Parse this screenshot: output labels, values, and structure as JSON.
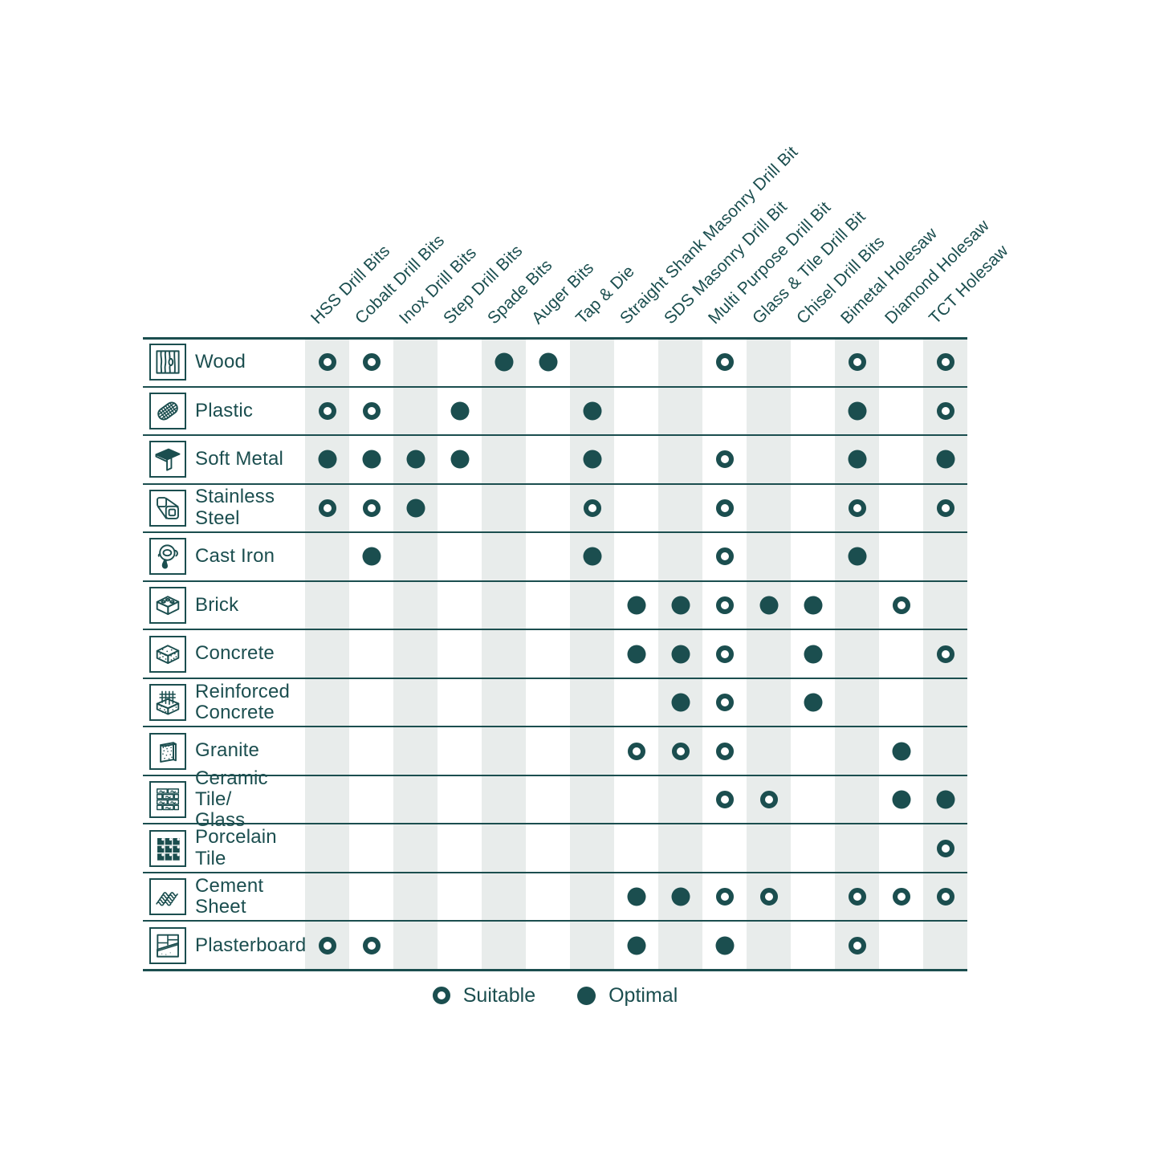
{
  "colors": {
    "ink": "#1b4e4f",
    "stripe": "#e8eceb",
    "background": "#ffffff"
  },
  "legend": {
    "suitable_label": "Suitable",
    "optimal_label": "Optimal"
  },
  "chart_data": {
    "type": "table",
    "description": "Drill bit / accessory suitability matrix by material",
    "legend_position": "bottom",
    "cell_encoding": {
      "0": "none",
      "1": "suitable (open ring)",
      "2": "optimal (filled dot)"
    },
    "columns": [
      "HSS Drill Bits",
      "Cobalt Drill Bits",
      "Inox Drill Bits",
      "Step Drill Bits",
      "Spade Bits",
      "Auger Bits",
      "Tap & Die",
      "Straight Shank Masonry Drill Bit",
      "SDS Masonry Drill Bit",
      "Multi Purpose Drill Bit",
      "Glass & Tile Drill Bit",
      "Chisel Drill Bits",
      "Bimetal Holesaw",
      "Diamond Holesaw",
      "TCT Holesaw"
    ],
    "rows": [
      {
        "material": "Wood",
        "icon": "wood-icon",
        "cells": [
          1,
          1,
          0,
          0,
          2,
          2,
          0,
          0,
          0,
          1,
          0,
          0,
          1,
          0,
          1
        ]
      },
      {
        "material": "Plastic",
        "icon": "plastic-icon",
        "cells": [
          1,
          1,
          0,
          2,
          0,
          0,
          2,
          0,
          0,
          0,
          0,
          0,
          2,
          0,
          1
        ]
      },
      {
        "material": "Soft Metal",
        "icon": "soft-metal-icon",
        "cells": [
          2,
          2,
          2,
          2,
          0,
          0,
          2,
          0,
          0,
          1,
          0,
          0,
          2,
          0,
          2
        ]
      },
      {
        "material": "Stainless Steel",
        "icon": "stainless-steel-icon",
        "cells": [
          1,
          1,
          2,
          0,
          0,
          0,
          1,
          0,
          0,
          1,
          0,
          0,
          1,
          0,
          1
        ]
      },
      {
        "material": "Cast Iron",
        "icon": "cast-iron-icon",
        "cells": [
          0,
          2,
          0,
          0,
          0,
          0,
          2,
          0,
          0,
          1,
          0,
          0,
          2,
          0,
          0
        ]
      },
      {
        "material": "Brick",
        "icon": "brick-icon",
        "cells": [
          0,
          0,
          0,
          0,
          0,
          0,
          0,
          2,
          2,
          1,
          2,
          2,
          0,
          1,
          0
        ]
      },
      {
        "material": "Concrete",
        "icon": "concrete-icon",
        "cells": [
          0,
          0,
          0,
          0,
          0,
          0,
          0,
          2,
          2,
          1,
          0,
          2,
          0,
          0,
          1
        ]
      },
      {
        "material": "Reinforced\nConcrete",
        "icon": "reinforced-concrete-icon",
        "cells": [
          0,
          0,
          0,
          0,
          0,
          0,
          0,
          0,
          2,
          1,
          0,
          2,
          0,
          0,
          0
        ]
      },
      {
        "material": "Granite",
        "icon": "granite-icon",
        "cells": [
          0,
          0,
          0,
          0,
          0,
          0,
          0,
          1,
          1,
          1,
          0,
          0,
          0,
          2,
          0
        ]
      },
      {
        "material": "Ceramic Tile/\nGlass",
        "icon": "ceramic-tile-icon",
        "cells": [
          0,
          0,
          0,
          0,
          0,
          0,
          0,
          0,
          0,
          1,
          1,
          0,
          0,
          2,
          2
        ]
      },
      {
        "material": "Porcelain Tile",
        "icon": "porcelain-tile-icon",
        "cells": [
          0,
          0,
          0,
          0,
          0,
          0,
          0,
          0,
          0,
          0,
          0,
          0,
          0,
          0,
          1
        ]
      },
      {
        "material": "Cement Sheet",
        "icon": "cement-sheet-icon",
        "cells": [
          0,
          0,
          0,
          0,
          0,
          0,
          0,
          2,
          2,
          1,
          1,
          0,
          1,
          1,
          1
        ]
      },
      {
        "material": "Plasterboard",
        "icon": "plasterboard-icon",
        "cells": [
          1,
          1,
          0,
          0,
          0,
          0,
          0,
          2,
          0,
          2,
          0,
          0,
          1,
          0,
          0
        ]
      }
    ]
  }
}
